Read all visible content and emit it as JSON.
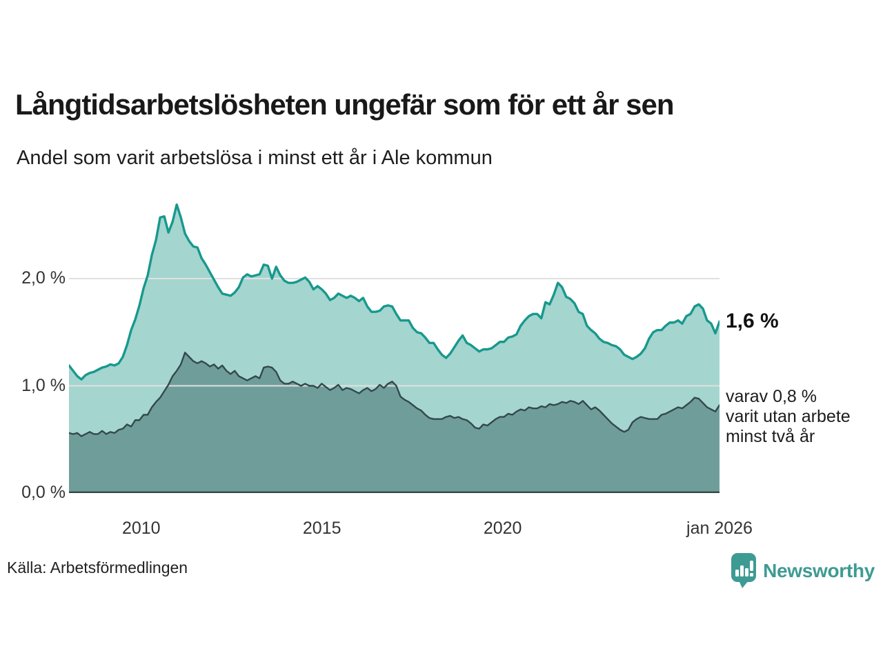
{
  "header": {
    "title": "Långtidsarbetslösheten ungefär som för ett år sen",
    "subtitle": "Andel som varit arbetslösa i minst ett år i Ale kommun"
  },
  "annotations": {
    "latest_total_label": "1,6 %",
    "note_lines": [
      "varav 0,8 %",
      "varit utan arbete",
      "minst två år"
    ]
  },
  "footer": {
    "source": "Källa: Arbetsförmedlingen",
    "brand_name": "Newsworthy"
  },
  "colors": {
    "series1_line": "#18988d",
    "series1_fill": "#a4d5cf",
    "series2_line": "#34484c",
    "series2_fill": "#6f9e9a",
    "gridline": "#e0e0e0",
    "baseline": "#35464a",
    "brand_teal": "#3e9b94",
    "text_dark": "#191919",
    "axis_text": "#333333"
  },
  "chart_data": {
    "type": "area",
    "title": "Långtidsarbetslösheten ungefär som för ett år sen",
    "subtitle": "Andel som varit arbetslösa i minst ett år i Ale kommun",
    "unit": "%",
    "x_start": 2008.0,
    "x_end": 2026.0,
    "ylim": [
      0,
      2.8
    ],
    "y_gridlines": [
      1.0,
      2.0
    ],
    "grid": "horizontal-only",
    "legend_position": "right-annotations",
    "y_ticks": [
      {
        "value": 2.0,
        "label": "2,0 %"
      },
      {
        "value": 1.0,
        "label": "1,0 %"
      },
      {
        "value": 0.0,
        "label": "0,0 %"
      }
    ],
    "x_ticks": [
      {
        "year": 2010,
        "label": "2010"
      },
      {
        "year": 2015,
        "label": "2015"
      },
      {
        "year": 2020,
        "label": "2020"
      },
      {
        "year": 2026,
        "label": "jan 2026"
      }
    ],
    "series": [
      {
        "name": "Andel arbetslösa minst ett år",
        "end_label": "1,6 %",
        "latest_value": 1.6,
        "line_color": "#18988d",
        "fill_color": "#a4d5cf",
        "values": [
          1.19,
          1.14,
          1.09,
          1.06,
          1.1,
          1.12,
          1.13,
          1.15,
          1.17,
          1.18,
          1.2,
          1.19,
          1.21,
          1.27,
          1.38,
          1.52,
          1.62,
          1.75,
          1.91,
          2.03,
          2.22,
          2.36,
          2.57,
          2.58,
          2.43,
          2.53,
          2.69,
          2.57,
          2.42,
          2.35,
          2.3,
          2.29,
          2.19,
          2.13,
          2.06,
          1.99,
          1.92,
          1.86,
          1.85,
          1.84,
          1.87,
          1.92,
          2.01,
          2.04,
          2.02,
          2.03,
          2.04,
          2.13,
          2.12,
          2.0,
          2.11,
          2.03,
          1.98,
          1.96,
          1.96,
          1.97,
          1.99,
          2.01,
          1.97,
          1.9,
          1.93,
          1.9,
          1.86,
          1.8,
          1.82,
          1.86,
          1.84,
          1.82,
          1.84,
          1.82,
          1.79,
          1.82,
          1.74,
          1.69,
          1.69,
          1.7,
          1.74,
          1.75,
          1.74,
          1.67,
          1.61,
          1.61,
          1.61,
          1.54,
          1.5,
          1.49,
          1.45,
          1.4,
          1.4,
          1.34,
          1.29,
          1.26,
          1.3,
          1.36,
          1.42,
          1.47,
          1.4,
          1.38,
          1.35,
          1.32,
          1.34,
          1.34,
          1.35,
          1.38,
          1.41,
          1.41,
          1.45,
          1.46,
          1.48,
          1.56,
          1.61,
          1.65,
          1.67,
          1.67,
          1.63,
          1.78,
          1.76,
          1.85,
          1.96,
          1.92,
          1.83,
          1.81,
          1.77,
          1.69,
          1.67,
          1.56,
          1.52,
          1.49,
          1.44,
          1.41,
          1.4,
          1.38,
          1.37,
          1.34,
          1.29,
          1.27,
          1.25,
          1.27,
          1.3,
          1.35,
          1.44,
          1.5,
          1.52,
          1.52,
          1.56,
          1.59,
          1.59,
          1.61,
          1.58,
          1.65,
          1.67,
          1.74,
          1.76,
          1.72,
          1.61,
          1.58,
          1.49,
          1.6
        ]
      },
      {
        "name": "varav utan arbete minst två år",
        "end_label": "varav 0,8 % varit utan arbete minst två år",
        "latest_value": 0.8,
        "line_color": "#34484c",
        "fill_color": "#6f9e9a",
        "values": [
          0.56,
          0.55,
          0.56,
          0.53,
          0.55,
          0.57,
          0.55,
          0.55,
          0.58,
          0.55,
          0.57,
          0.56,
          0.59,
          0.6,
          0.64,
          0.62,
          0.68,
          0.68,
          0.73,
          0.73,
          0.8,
          0.85,
          0.89,
          0.95,
          1.01,
          1.09,
          1.14,
          1.2,
          1.31,
          1.27,
          1.23,
          1.21,
          1.23,
          1.21,
          1.18,
          1.2,
          1.16,
          1.19,
          1.14,
          1.11,
          1.14,
          1.09,
          1.07,
          1.05,
          1.07,
          1.09,
          1.07,
          1.17,
          1.18,
          1.17,
          1.13,
          1.05,
          1.02,
          1.02,
          1.04,
          1.02,
          1.0,
          1.02,
          1.0,
          1.0,
          0.98,
          1.02,
          0.99,
          0.96,
          0.98,
          1.01,
          0.96,
          0.98,
          0.97,
          0.95,
          0.93,
          0.96,
          0.98,
          0.95,
          0.97,
          1.01,
          0.98,
          1.02,
          1.04,
          1.0,
          0.9,
          0.87,
          0.85,
          0.82,
          0.79,
          0.77,
          0.73,
          0.7,
          0.69,
          0.69,
          0.69,
          0.71,
          0.72,
          0.7,
          0.71,
          0.69,
          0.68,
          0.65,
          0.61,
          0.6,
          0.64,
          0.63,
          0.66,
          0.69,
          0.71,
          0.71,
          0.74,
          0.73,
          0.76,
          0.78,
          0.77,
          0.8,
          0.79,
          0.79,
          0.81,
          0.8,
          0.83,
          0.82,
          0.83,
          0.85,
          0.84,
          0.86,
          0.85,
          0.83,
          0.86,
          0.82,
          0.78,
          0.8,
          0.77,
          0.73,
          0.69,
          0.65,
          0.62,
          0.59,
          0.57,
          0.59,
          0.66,
          0.69,
          0.71,
          0.7,
          0.69,
          0.69,
          0.69,
          0.73,
          0.74,
          0.76,
          0.78,
          0.8,
          0.79,
          0.82,
          0.85,
          0.89,
          0.88,
          0.84,
          0.8,
          0.78,
          0.76,
          0.82
        ]
      }
    ]
  }
}
